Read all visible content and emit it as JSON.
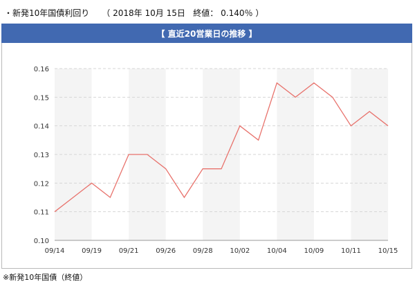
{
  "header": {
    "prefix": "・新発10年国債利回り",
    "open_paren": "（",
    "date": "2018年 10月 15日",
    "close_label": "終値：",
    "close_value": "0.140％",
    "close_paren": "）"
  },
  "section_title": "【 直近20営業日の推移 】",
  "footnote": "※新発10年国債（終値）",
  "colors": {
    "band": "#4169b1",
    "line": "#e8726c",
    "stripe": "#f4f4f4",
    "grid": "#d6d6d6"
  },
  "chart_data": {
    "type": "line",
    "title": "",
    "xlabel": "",
    "ylabel": "",
    "ylim": [
      0.1,
      0.16
    ],
    "yticks": [
      "0.10",
      "0.11",
      "0.12",
      "0.13",
      "0.14",
      "0.15",
      "0.16"
    ],
    "xtick_labels": [
      "09/14",
      "09/19",
      "09/21",
      "09/26",
      "09/28",
      "10/02",
      "10/04",
      "10/09",
      "10/11",
      "10/15"
    ],
    "grid": true,
    "series": [
      {
        "name": "",
        "values": [
          0.11,
          0.115,
          0.12,
          0.115,
          0.13,
          0.13,
          0.125,
          0.115,
          0.125,
          0.125,
          0.14,
          0.135,
          0.155,
          0.15,
          0.155,
          0.15,
          0.14,
          0.145,
          0.14
        ]
      }
    ]
  }
}
